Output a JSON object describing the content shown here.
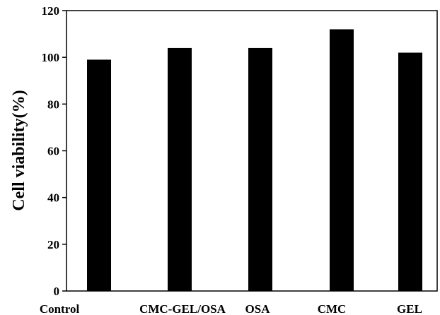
{
  "chart_data": {
    "type": "bar",
    "title": "",
    "xlabel": "",
    "ylabel": "Cell viability(%)",
    "categories": [
      "Control",
      "CMC-GEL/OSA",
      "OSA",
      "CMC",
      "GEL"
    ],
    "values": [
      99,
      104,
      104,
      112,
      102
    ],
    "ylim": [
      0,
      120
    ],
    "yticks": [
      "0",
      "20",
      "40",
      "60",
      "80",
      "100",
      "120"
    ],
    "grid": false,
    "legend": "none",
    "bar_color": "#000000"
  }
}
